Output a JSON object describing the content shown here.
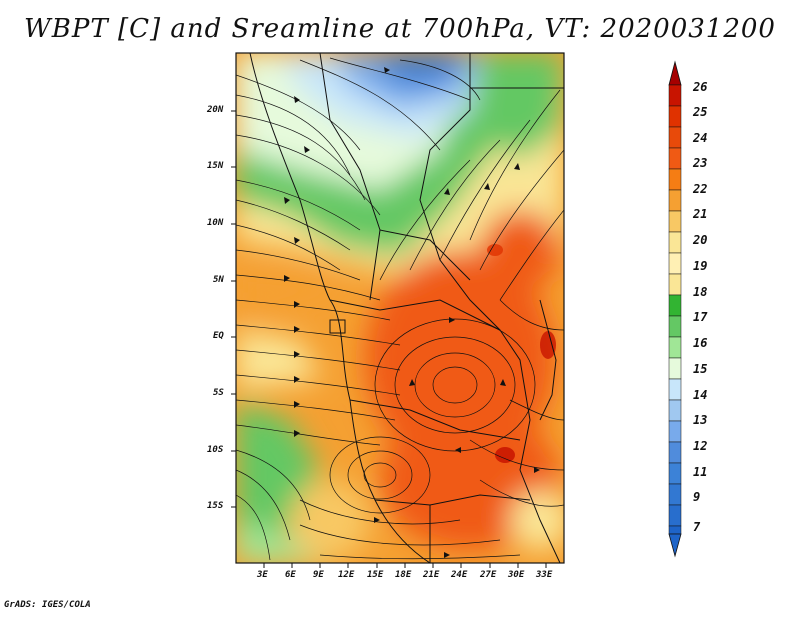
{
  "title": "WBPT [C] and Sreamline at 700hPa, VT: 2020031200",
  "credit": "GrADS: IGES/COLA",
  "map": {
    "lon_ticks": [
      "3E",
      "6E",
      "9E",
      "12E",
      "15E",
      "18E",
      "21E",
      "24E",
      "27E",
      "30E",
      "33E"
    ],
    "lat_ticks": [
      "20N",
      "15N",
      "10N",
      "5N",
      "EQ",
      "5S",
      "10S",
      "15S"
    ]
  },
  "colorbar": {
    "labels": [
      "26",
      "25",
      "24",
      "23",
      "22",
      "21",
      "20",
      "19",
      "18",
      "17",
      "16",
      "15",
      "14",
      "13",
      "12",
      "11",
      "9",
      "7"
    ],
    "colors": [
      "#a50000",
      "#c81400",
      "#e03200",
      "#f05a14",
      "#f57d14",
      "#f5a032",
      "#f8c864",
      "#fae696",
      "#32b432",
      "#64c864",
      "#a0e696",
      "#e6fadc",
      "#c8e6fa",
      "#a0c8f0",
      "#78aaeb",
      "#508cdc",
      "#3278d2",
      "#1e64c8"
    ]
  }
}
